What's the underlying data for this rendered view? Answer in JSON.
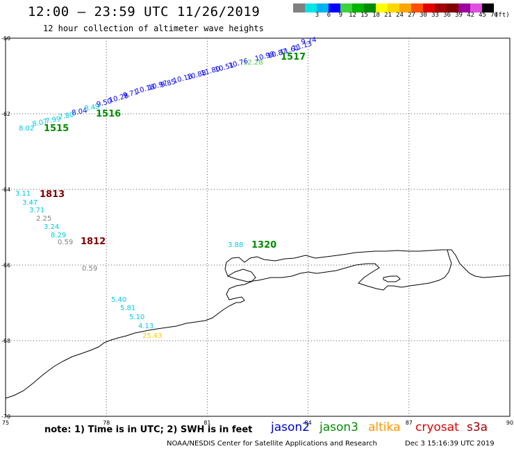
{
  "header": {
    "title": "12:00 – 23:59 UTC 11/26/2019",
    "subtitle": "12 hour collection of altimeter wave heights"
  },
  "legend": {
    "unit": "(ft)",
    "scale": [
      {
        "label": "",
        "color": "#808080"
      },
      {
        "label": "3",
        "color": "#00e5e5"
      },
      {
        "label": "6",
        "color": "#00b0f0"
      },
      {
        "label": "9",
        "color": "#0000ff"
      },
      {
        "label": "12",
        "color": "#3cd23c"
      },
      {
        "label": "15",
        "color": "#00b400"
      },
      {
        "label": "18",
        "color": "#008c00"
      },
      {
        "label": "21",
        "color": "#ffff00"
      },
      {
        "label": "24",
        "color": "#ffd700"
      },
      {
        "label": "27",
        "color": "#ffa500"
      },
      {
        "label": "30",
        "color": "#ff5000"
      },
      {
        "label": "33",
        "color": "#e00000"
      },
      {
        "label": "36",
        "color": "#a00000"
      },
      {
        "label": "39",
        "color": "#800000"
      },
      {
        "label": "42",
        "color": "#a000a0"
      },
      {
        "label": "45",
        "color": "#e050e0"
      },
      {
        "label": "70",
        "color": "#000000"
      }
    ]
  },
  "map": {
    "lon_range": [
      75,
      90
    ],
    "lat_range": [
      -70,
      -60
    ],
    "lon_ticks": [
      "75",
      "78",
      "81",
      "84",
      "87",
      "90"
    ],
    "lat_ticks": [
      "-60",
      "-62",
      "-64",
      "-66",
      "-68",
      "-70"
    ],
    "grid": true
  },
  "passes": [
    {
      "id": "1515",
      "color": "#008c00"
    },
    {
      "id": "1516",
      "color": "#008c00"
    },
    {
      "id": "1517",
      "color": "#008c00"
    },
    {
      "id": "1813",
      "color": "#800000"
    },
    {
      "id": "1812",
      "color": "#800000"
    },
    {
      "id": "1320",
      "color": "#008c00"
    }
  ],
  "observations": [
    {
      "v": "8.02",
      "color": "#00c8e6"
    },
    {
      "v": "8.07",
      "color": "#00c8e6"
    },
    {
      "v": "7.99",
      "color": "#00c8e6"
    },
    {
      "v": "7.80",
      "color": "#00c8e6"
    },
    {
      "v": "8.04",
      "color": "#0000ff"
    },
    {
      "v": "8.49",
      "color": "#00c8e6"
    },
    {
      "v": "9.50",
      "color": "#0000ff"
    },
    {
      "v": "10.28",
      "color": "#0000ff"
    },
    {
      "v": "9.71",
      "color": "#0000ff"
    },
    {
      "v": "10.18",
      "color": "#0000ff"
    },
    {
      "v": "10.97",
      "color": "#0000ff"
    },
    {
      "v": "9.85",
      "color": "#0000ff"
    },
    {
      "v": "10.18",
      "color": "#0000ff"
    },
    {
      "v": "10.88",
      "color": "#0000ff"
    },
    {
      "v": "11.80",
      "color": "#0000ff"
    },
    {
      "v": "10.51",
      "color": "#0000ff"
    },
    {
      "v": "10.76",
      "color": "#0000ff"
    },
    {
      "v": "12.28",
      "color": "#3cd23c"
    },
    {
      "v": "10.98",
      "color": "#0000ff"
    },
    {
      "v": "10.87",
      "color": "#0000ff"
    },
    {
      "v": "11.61",
      "color": "#0000ff"
    },
    {
      "v": "11.13",
      "color": "#0000ff"
    },
    {
      "v": "9.74",
      "color": "#0000ff"
    },
    {
      "v": "3.11",
      "color": "#00c8e6"
    },
    {
      "v": "3.47",
      "color": "#00c8e6"
    },
    {
      "v": "3.71",
      "color": "#00c8e6"
    },
    {
      "v": "2.25",
      "color": "#808080"
    },
    {
      "v": "3.24",
      "color": "#00c8e6"
    },
    {
      "v": "8.29",
      "color": "#00c8e6"
    },
    {
      "v": "0.59",
      "color": "#808080"
    },
    {
      "v": "0.59",
      "color": "#808080"
    },
    {
      "v": "3.88",
      "color": "#00c8e6"
    },
    {
      "v": "5.40",
      "color": "#00c8e6"
    },
    {
      "v": "5.81",
      "color": "#00c8e6"
    },
    {
      "v": "5.10",
      "color": "#00c8e6"
    },
    {
      "v": "4.13",
      "color": "#00c8e6"
    },
    {
      "v": "25.43",
      "color": "#ffc800"
    }
  ],
  "footer": {
    "note": "note:  1) Time is in UTC;  2) SWH is in feet",
    "satellites": [
      {
        "name": "jason2",
        "color": "#0000c8"
      },
      {
        "name": "jason3",
        "color": "#008c00"
      },
      {
        "name": "altika",
        "color": "#ff9600"
      },
      {
        "name": "cryosat",
        "color": "#e00000"
      },
      {
        "name": "s3a",
        "color": "#a00000"
      }
    ],
    "credit": "NOAA/NESDIS Center for Satellite Applications and Research",
    "timestamp": "Dec  3 15:16:39 UTC 2019"
  }
}
